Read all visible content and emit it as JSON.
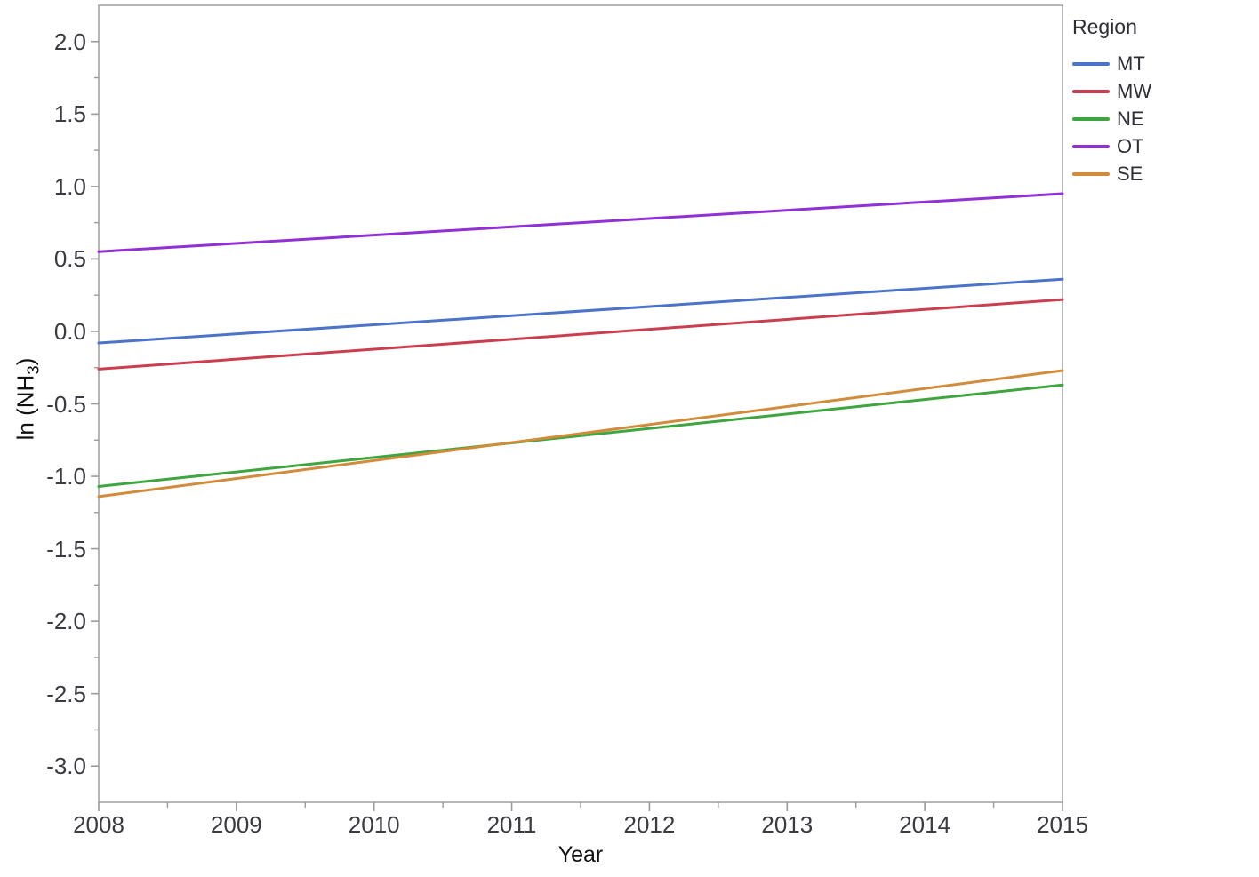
{
  "chart_data": {
    "type": "line",
    "title": "",
    "xlabel": "Year",
    "ylabel": "ln (NH3)",
    "ylabel_prefix": "ln (NH",
    "ylabel_sub": "3",
    "ylabel_suffix": ")",
    "xlim": [
      2008,
      2015
    ],
    "ylim": [
      -3.25,
      2.25
    ],
    "x": [
      2008,
      2015
    ],
    "x_tick_values": [
      2008,
      2009,
      2010,
      2011,
      2012,
      2013,
      2014,
      2015
    ],
    "x_tick_labels": [
      "2008",
      "2009",
      "2010",
      "2011",
      "2012",
      "2013",
      "2014",
      "2015"
    ],
    "x_minor_ticks": [
      2008.5,
      2009.5,
      2010.5,
      2011.5,
      2012.5,
      2013.5,
      2014.5
    ],
    "y_tick_values": [
      2.0,
      1.5,
      1.0,
      0.5,
      0.0,
      -0.5,
      -1.0,
      -1.5,
      -2.0,
      -2.5,
      -3.0
    ],
    "y_tick_labels": [
      "2.0",
      "1.5",
      "1.0",
      "0.5",
      "0.0",
      "-0.5",
      "-1.0",
      "-1.5",
      "-2.0",
      "-2.5",
      "-3.0"
    ],
    "y_minor_ticks": [
      1.75,
      1.25,
      0.75,
      0.25,
      -0.25,
      -0.75,
      -1.25,
      -1.75,
      -2.25,
      -2.75
    ],
    "grid": false,
    "legend": {
      "title": "Region",
      "position": "right"
    },
    "frame_color": "#a3a3a3",
    "tick_color": "#9a9a9a",
    "text_color": "#3a3a40",
    "series": [
      {
        "name": "MT",
        "color": "#4a73c9",
        "values": [
          -0.08,
          0.36
        ]
      },
      {
        "name": "MW",
        "color": "#cb3e50",
        "values": [
          -0.26,
          0.22
        ]
      },
      {
        "name": "NE",
        "color": "#3ea63e",
        "values": [
          -1.07,
          -0.37
        ]
      },
      {
        "name": "OT",
        "color": "#9130d4",
        "values": [
          0.55,
          0.95
        ]
      },
      {
        "name": "SE",
        "color": "#d18b3a",
        "values": [
          -1.14,
          -0.27
        ]
      }
    ]
  }
}
